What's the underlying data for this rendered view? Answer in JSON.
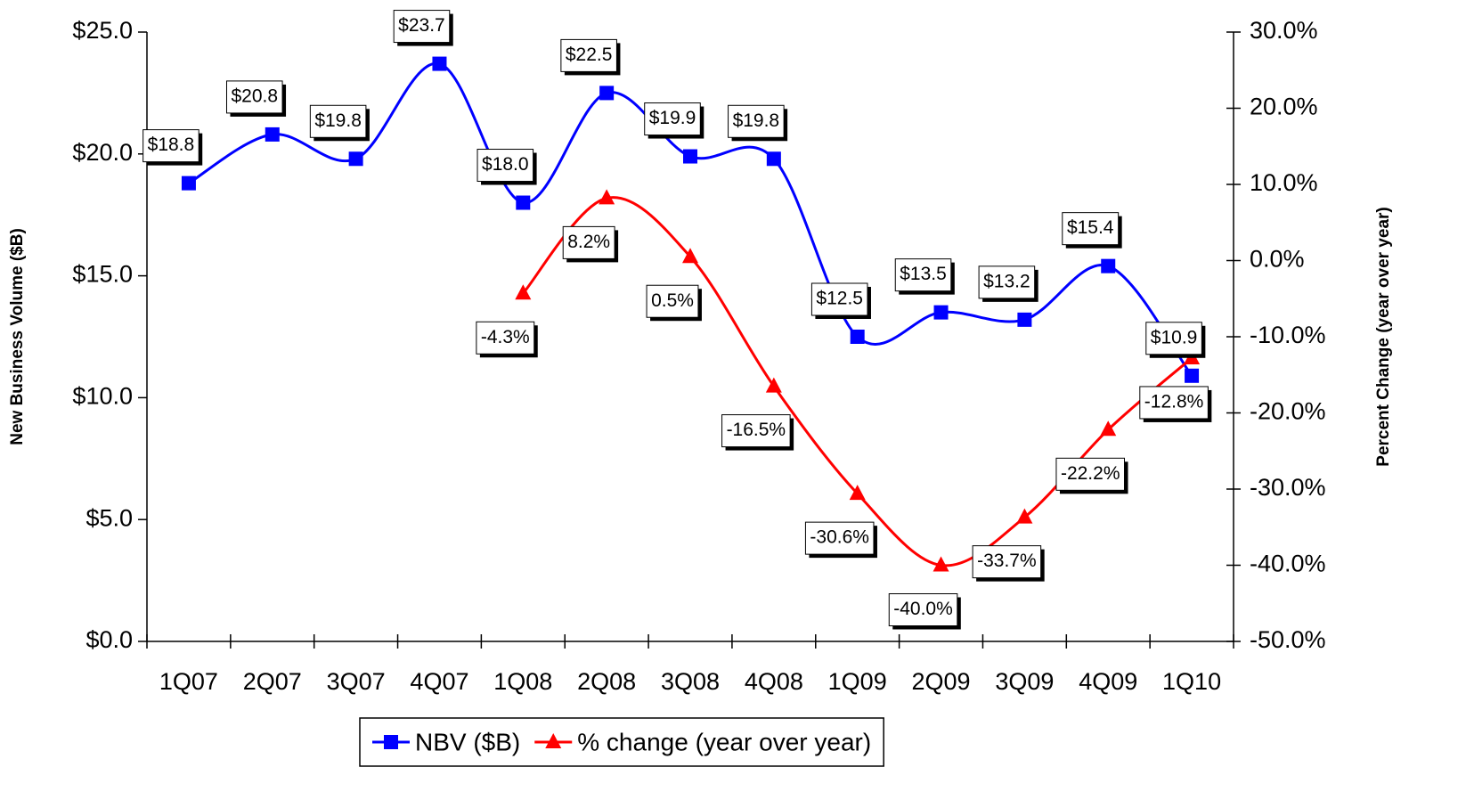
{
  "chart_data": {
    "type": "line",
    "categories": [
      "1Q07",
      "2Q07",
      "3Q07",
      "4Q07",
      "1Q08",
      "2Q08",
      "3Q08",
      "4Q08",
      "1Q09",
      "2Q09",
      "3Q09",
      "4Q09",
      "1Q10"
    ],
    "y_label": "New Business Volume ($B)",
    "y2_label": "Percent Change (year over year)",
    "ylim": [
      0,
      25
    ],
    "yticks": [
      {
        "value": 0,
        "label": "$0.0"
      },
      {
        "value": 5,
        "label": "$5.0"
      },
      {
        "value": 10,
        "label": "$10.0"
      },
      {
        "value": 15,
        "label": "$15.0"
      },
      {
        "value": 20,
        "label": "$20.0"
      },
      {
        "value": 25,
        "label": "$25.0"
      }
    ],
    "y2lim": [
      -50,
      30
    ],
    "y2ticks": [
      {
        "value": -50,
        "label": "-50.0%"
      },
      {
        "value": -40,
        "label": "-40.0%"
      },
      {
        "value": -30,
        "label": "-30.0%"
      },
      {
        "value": -20,
        "label": "-20.0%"
      },
      {
        "value": -10,
        "label": "-10.0%"
      },
      {
        "value": 0,
        "label": "0.0%"
      },
      {
        "value": 10,
        "label": "10.0%"
      },
      {
        "value": 20,
        "label": "20.0%"
      },
      {
        "value": 30,
        "label": "30.0%"
      }
    ],
    "smooth": true,
    "legend": "bottom",
    "series": [
      {
        "name": "NBV ($B)",
        "color": "#0000ff",
        "marker": "square",
        "values": [
          18.8,
          20.8,
          19.8,
          23.7,
          18.0,
          22.5,
          19.9,
          19.8,
          12.5,
          13.5,
          13.2,
          15.4,
          10.9
        ],
        "value_labels": [
          "$18.8",
          "$20.8",
          "$19.8",
          "$23.7",
          "$18.0",
          "$22.5",
          "$19.9",
          "$19.8",
          "$12.5",
          "$13.5",
          "$13.2",
          "$15.4",
          "$10.9"
        ]
      },
      {
        "name": "% change (year over year)",
        "color": "#ff0000",
        "marker": "triangle",
        "axis": "y2",
        "values": [
          null,
          null,
          null,
          null,
          -4.3,
          8.2,
          0.5,
          -16.5,
          -30.6,
          -40.0,
          -33.7,
          -22.2,
          -12.8
        ],
        "value_labels": [
          null,
          null,
          null,
          null,
          "-4.3%",
          "8.2%",
          "0.5%",
          "-16.5%",
          "-30.6%",
          "-40.0%",
          "-33.7%",
          "-22.2%",
          "-12.8%"
        ]
      }
    ]
  }
}
